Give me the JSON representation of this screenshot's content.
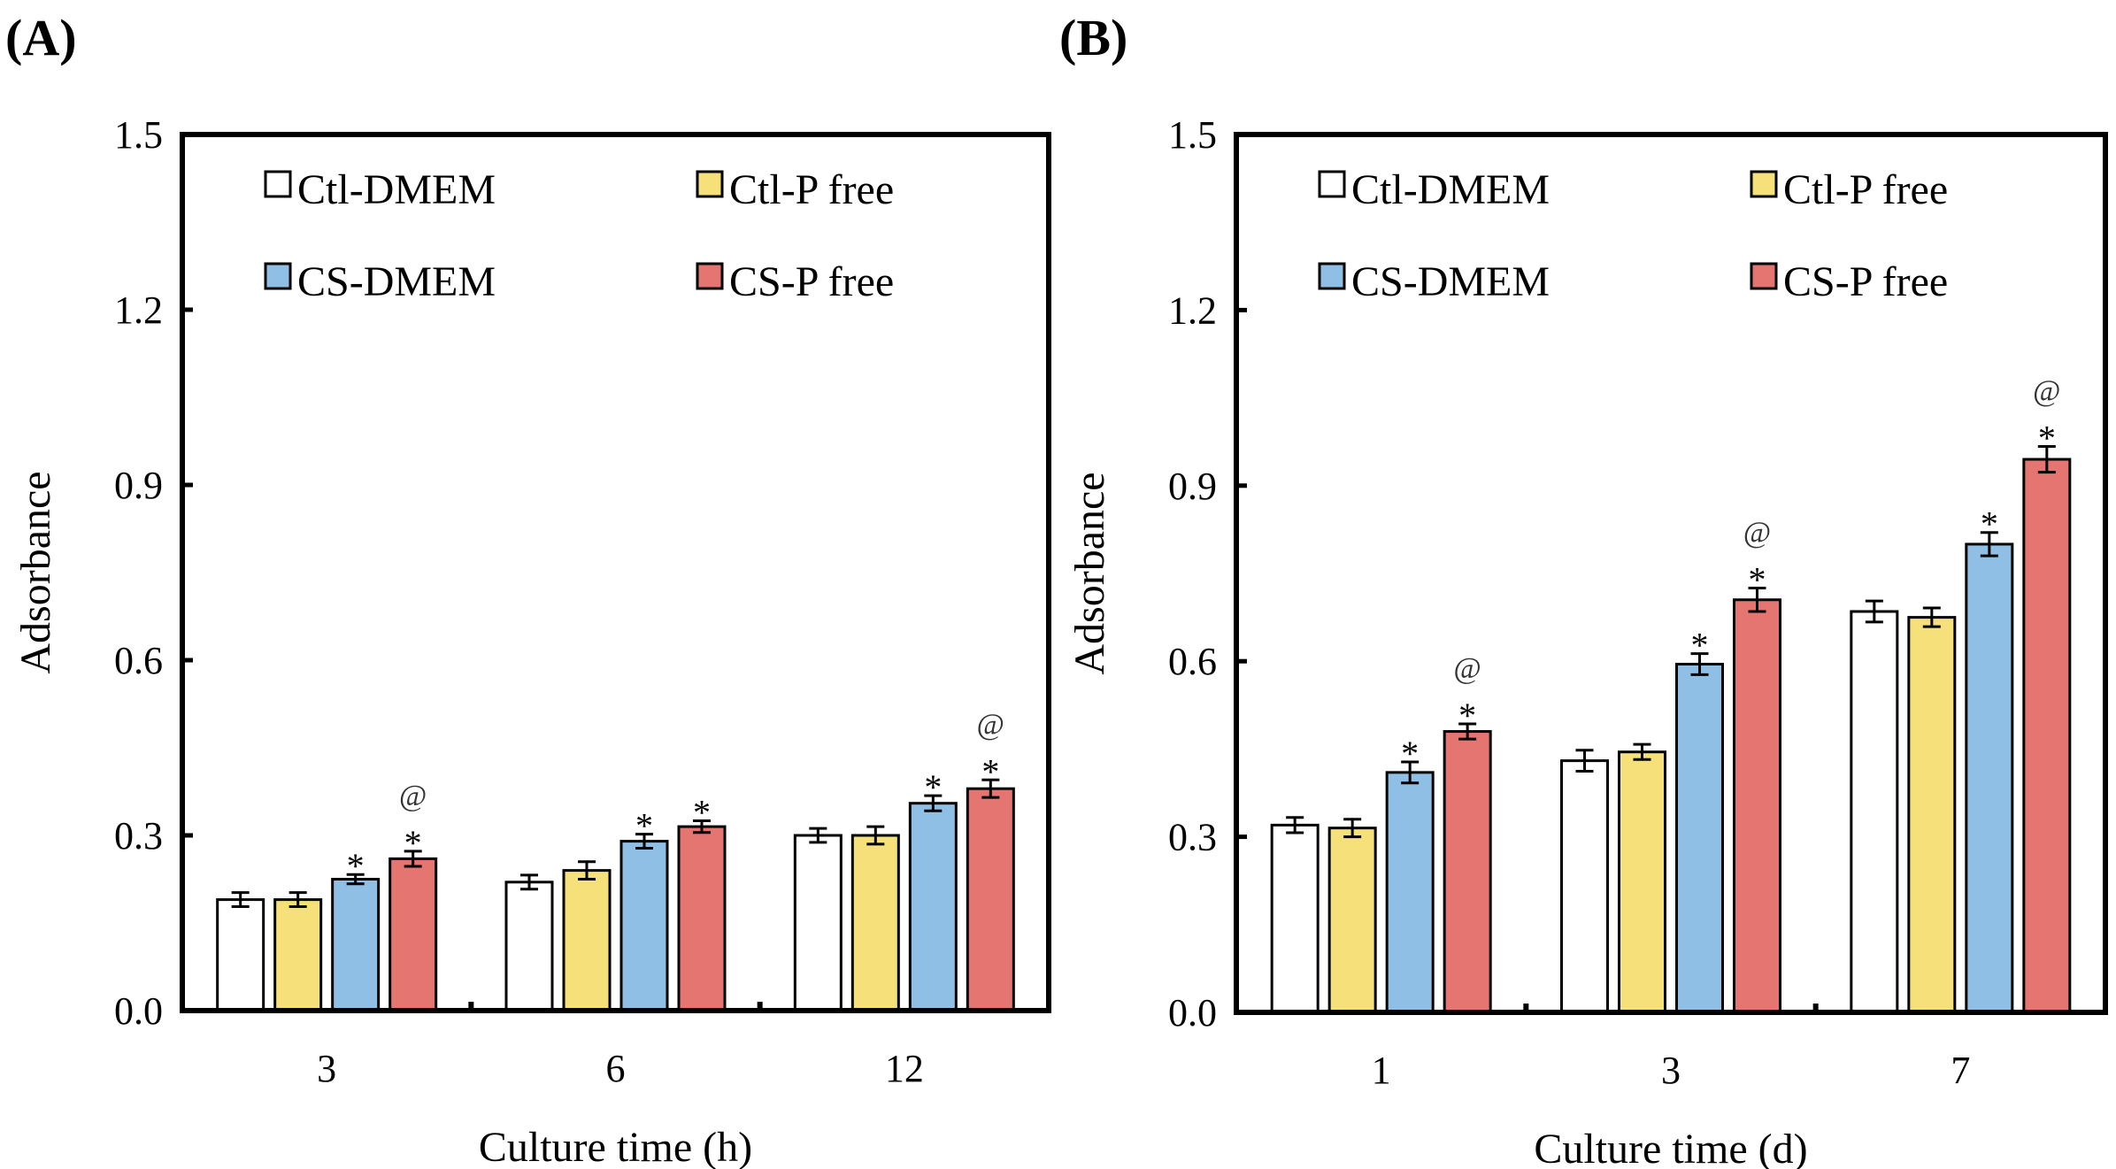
{
  "chart_data": [
    {
      "type": "bar",
      "panel_label": "(A)",
      "xlabel": "Culture time (h)",
      "ylabel": "Adsorbance",
      "ylim": [
        0,
        1.5
      ],
      "yticks": [
        "0.0",
        "0.3",
        "0.6",
        "0.9",
        "1.2",
        "1.5"
      ],
      "categories": [
        "3",
        "6",
        "12"
      ],
      "legend_placement": "top",
      "series": [
        {
          "name": "Ctl-DMEM",
          "color": "#ffffff",
          "values": [
            0.19,
            0.22,
            0.3
          ],
          "errors": [
            0.012,
            0.012,
            0.012
          ],
          "annotations": [
            "",
            "",
            ""
          ]
        },
        {
          "name": "Ctl-P free",
          "color": "#f6e07a",
          "values": [
            0.19,
            0.24,
            0.3
          ],
          "errors": [
            0.012,
            0.015,
            0.015
          ],
          "annotations": [
            "",
            "",
            ""
          ]
        },
        {
          "name": "CS-DMEM",
          "color": "#8fbfe4",
          "values": [
            0.225,
            0.29,
            0.355
          ],
          "errors": [
            0.008,
            0.012,
            0.013
          ],
          "annotations": [
            "*",
            "*",
            "*"
          ]
        },
        {
          "name": "CS-P free",
          "color": "#e57570",
          "values": [
            0.26,
            0.315,
            0.38
          ],
          "errors": [
            0.013,
            0.01,
            0.015
          ],
          "annotations": [
            "*@",
            "*",
            "*@"
          ]
        }
      ]
    },
    {
      "type": "bar",
      "panel_label": "(B)",
      "xlabel": "Culture time (d)",
      "ylabel": "Adsorbance",
      "ylim": [
        0,
        1.5
      ],
      "yticks": [
        "0.0",
        "0.3",
        "0.6",
        "0.9",
        "1.2",
        "1.5"
      ],
      "categories": [
        "1",
        "3",
        "7"
      ],
      "legend_placement": "top",
      "series": [
        {
          "name": "Ctl-DMEM",
          "color": "#ffffff",
          "values": [
            0.32,
            0.43,
            0.685
          ],
          "errors": [
            0.013,
            0.018,
            0.018
          ],
          "annotations": [
            "",
            "",
            ""
          ]
        },
        {
          "name": "Ctl-P free",
          "color": "#f6e07a",
          "values": [
            0.315,
            0.445,
            0.675
          ],
          "errors": [
            0.015,
            0.013,
            0.016
          ],
          "annotations": [
            "",
            "",
            ""
          ]
        },
        {
          "name": "CS-DMEM",
          "color": "#8fbfe4",
          "values": [
            0.41,
            0.595,
            0.8
          ],
          "errors": [
            0.018,
            0.018,
            0.02
          ],
          "annotations": [
            "*",
            "*",
            "*"
          ]
        },
        {
          "name": "CS-P free",
          "color": "#e57570",
          "values": [
            0.48,
            0.705,
            0.945
          ],
          "errors": [
            0.013,
            0.02,
            0.022
          ],
          "annotations": [
            "*@",
            "*@",
            "*@"
          ]
        }
      ]
    }
  ]
}
